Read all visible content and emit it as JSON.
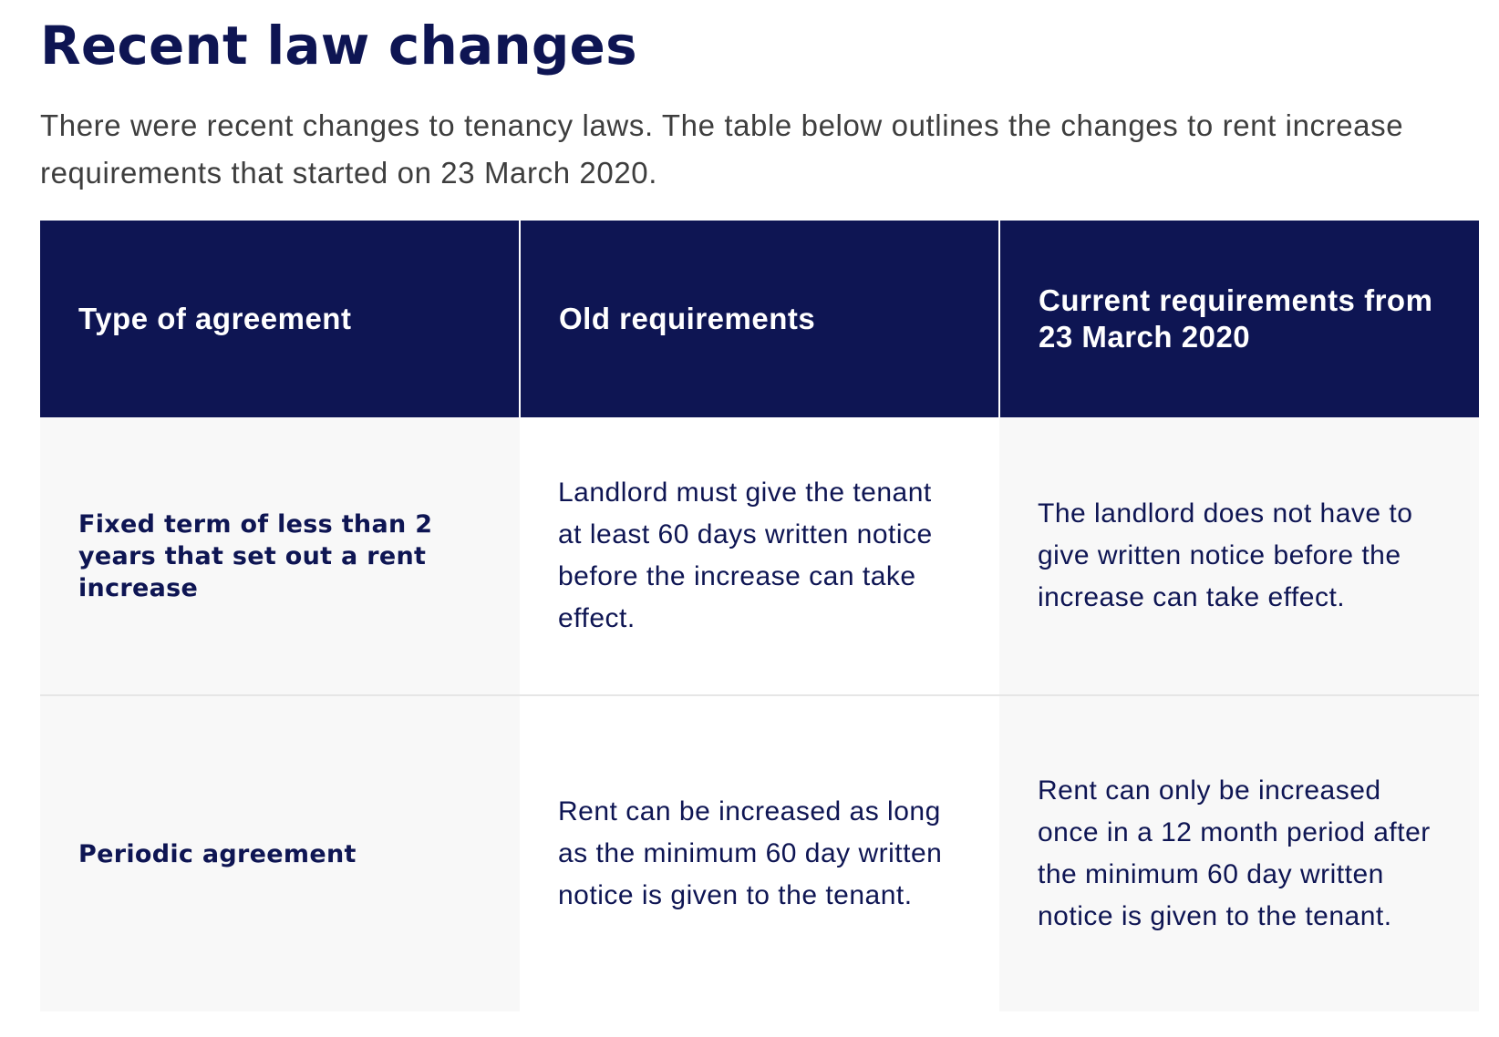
{
  "page": {
    "title": "Recent law changes",
    "intro": "There were recent changes to tenancy laws. The table below outlines the changes to rent increase requirements that started on 23 March 2020."
  },
  "table": {
    "headers": {
      "type": "Type of agreement",
      "old": "Old requirements",
      "current": "Current requirements from 23 March 2020"
    },
    "rows": [
      {
        "type": "Fixed term of less than 2 years that set out a rent increase",
        "old": "Landlord must give the tenant at least 60 days written notice before the increase can take effect.",
        "current": "The landlord does not have to give written notice before the increase can take effect."
      },
      {
        "type": "Periodic agreement",
        "old": "Rent can be increased as long as the minimum 60 day written notice is given to the tenant.",
        "current": "Rent can only be increased once in a 12 month period after the minimum 60 day written notice is given to the tenant."
      }
    ]
  },
  "colors": {
    "heading": "#0e1553",
    "header_background": "#0e1553",
    "body_text": "#3e3e3e",
    "shaded_cell": "#f8f8f8"
  }
}
